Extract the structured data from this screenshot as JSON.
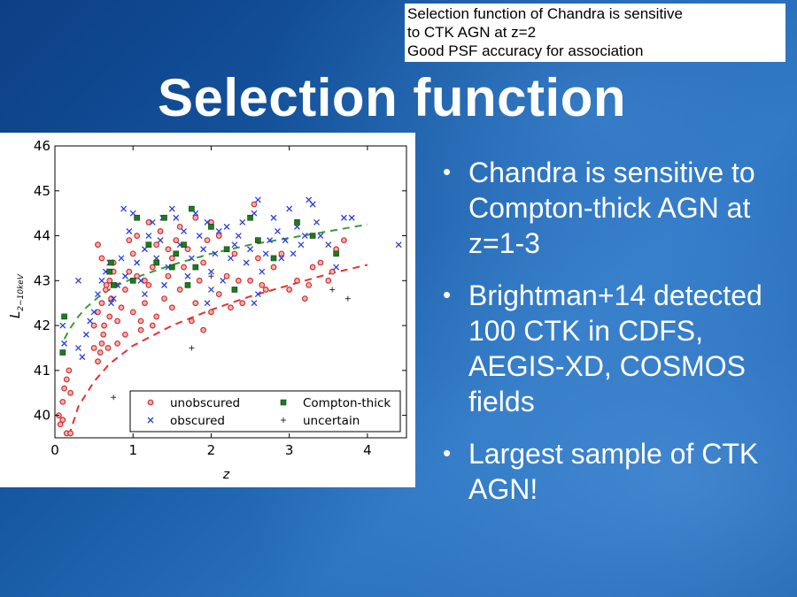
{
  "note": {
    "lines": [
      "Selection function of Chandra is sensitive",
      "to CTK AGN at z=2",
      "Good PSF accuracy for association"
    ]
  },
  "title": "Selection function",
  "bullets": [
    "Chandra is sensitive to Compton-thick AGN at z=1-3",
    "Brightman+14 detected 100 CTK in CDFS, AEGIS-XD, COSMOS fields",
    "Largest sample of CTK AGN!"
  ],
  "chart_data": {
    "type": "scatter",
    "xlabel": "z",
    "ylabel": "L",
    "ylabel_sub": "2−10keV",
    "xlim": [
      0,
      4.5
    ],
    "ylim": [
      39.5,
      46
    ],
    "xticks": [
      0,
      1,
      2,
      3,
      4
    ],
    "yticks": [
      40,
      41,
      42,
      43,
      44,
      45,
      46
    ],
    "legend_position": "lower-right",
    "colors": {
      "unobscured": "#d03030",
      "obscured": "#2a3de0",
      "compton_thick": "#1f7a1f",
      "uncertain": "#333333",
      "green_curve": "#3a9a3a",
      "red_curve": "#e83030"
    },
    "series": [
      {
        "name": "unobscured",
        "marker": "circle",
        "points": [
          [
            0.05,
            40.0
          ],
          [
            0.07,
            39.8
          ],
          [
            0.1,
            40.3
          ],
          [
            0.12,
            40.6
          ],
          [
            0.15,
            40.8
          ],
          [
            0.18,
            41.0
          ],
          [
            0.1,
            39.9
          ],
          [
            0.2,
            40.5
          ],
          [
            0.15,
            39.6
          ],
          [
            0.2,
            39.6
          ],
          [
            0.5,
            41.5
          ],
          [
            0.55,
            41.2
          ],
          [
            0.6,
            41.6
          ],
          [
            0.5,
            42.0
          ],
          [
            0.55,
            42.3
          ],
          [
            0.6,
            42.5
          ],
          [
            0.65,
            42.8
          ],
          [
            0.7,
            43.0
          ],
          [
            0.75,
            43.2
          ],
          [
            0.62,
            41.8
          ],
          [
            0.68,
            41.5
          ],
          [
            0.55,
            43.8
          ],
          [
            0.6,
            43.5
          ],
          [
            0.7,
            42.2
          ],
          [
            0.72,
            42.6
          ],
          [
            0.75,
            43.4
          ],
          [
            0.8,
            42.1
          ],
          [
            0.85,
            42.4
          ],
          [
            0.9,
            42.8
          ],
          [
            0.95,
            43.2
          ],
          [
            1.0,
            43.6
          ],
          [
            1.05,
            44.0
          ],
          [
            0.8,
            41.6
          ],
          [
            0.9,
            41.8
          ],
          [
            0.95,
            43.9
          ],
          [
            1.0,
            42.3
          ],
          [
            1.1,
            42.1
          ],
          [
            1.15,
            42.5
          ],
          [
            1.2,
            42.9
          ],
          [
            1.25,
            43.3
          ],
          [
            1.3,
            43.8
          ],
          [
            1.35,
            44.1
          ],
          [
            1.1,
            41.9
          ],
          [
            1.2,
            44.3
          ],
          [
            1.15,
            43.0
          ],
          [
            1.3,
            42.2
          ],
          [
            1.4,
            42.6
          ],
          [
            1.45,
            43.1
          ],
          [
            1.5,
            43.5
          ],
          [
            1.55,
            43.9
          ],
          [
            1.6,
            44.2
          ],
          [
            1.5,
            42.4
          ],
          [
            1.6,
            42.8
          ],
          [
            1.65,
            43.3
          ],
          [
            1.7,
            43.7
          ],
          [
            1.75,
            42.1
          ],
          [
            1.8,
            42.5
          ],
          [
            1.85,
            43.0
          ],
          [
            1.9,
            43.4
          ],
          [
            1.95,
            43.9
          ],
          [
            2.0,
            44.3
          ],
          [
            1.8,
            44.4
          ],
          [
            1.9,
            41.9
          ],
          [
            2.0,
            42.3
          ],
          [
            2.1,
            42.7
          ],
          [
            2.2,
            43.1
          ],
          [
            2.3,
            43.6
          ],
          [
            2.1,
            44.0
          ],
          [
            2.4,
            42.5
          ],
          [
            2.5,
            43.0
          ],
          [
            2.6,
            43.5
          ],
          [
            2.55,
            44.7
          ],
          [
            2.7,
            42.8
          ],
          [
            2.8,
            43.3
          ],
          [
            2.9,
            43.6
          ],
          [
            3.0,
            42.8
          ],
          [
            3.1,
            43.0
          ],
          [
            3.2,
            42.6
          ],
          [
            3.25,
            42.9
          ],
          [
            3.3,
            43.3
          ],
          [
            3.4,
            43.4
          ],
          [
            3.5,
            43.0
          ],
          [
            3.55,
            43.2
          ],
          [
            3.6,
            43.7
          ],
          [
            3.7,
            43.9
          ],
          [
            0.58,
            41.4
          ],
          [
            0.63,
            42.0
          ],
          [
            0.66,
            42.9
          ],
          [
            1.25,
            42.0
          ],
          [
            1.45,
            43.7
          ],
          [
            2.25,
            42.4
          ],
          [
            2.35,
            43.0
          ],
          [
            2.65,
            42.9
          ],
          [
            0.78,
            42.9
          ],
          [
            1.05,
            43.1
          ]
        ]
      },
      {
        "name": "obscured",
        "marker": "x",
        "points": [
          [
            0.1,
            42.0
          ],
          [
            0.12,
            41.6
          ],
          [
            0.3,
            43.0
          ],
          [
            0.3,
            41.5
          ],
          [
            0.35,
            41.3
          ],
          [
            0.4,
            41.8
          ],
          [
            0.45,
            42.1
          ],
          [
            0.5,
            42.3
          ],
          [
            0.55,
            42.7
          ],
          [
            0.6,
            43.0
          ],
          [
            0.65,
            43.2
          ],
          [
            0.7,
            43.4
          ],
          [
            0.75,
            42.6
          ],
          [
            0.8,
            42.9
          ],
          [
            0.85,
            43.5
          ],
          [
            0.9,
            43.1
          ],
          [
            0.95,
            44.1
          ],
          [
            1.0,
            44.5
          ],
          [
            1.05,
            43.4
          ],
          [
            1.1,
            43.0
          ],
          [
            1.15,
            43.7
          ],
          [
            1.2,
            44.0
          ],
          [
            1.25,
            44.3
          ],
          [
            1.3,
            43.5
          ],
          [
            1.35,
            43.9
          ],
          [
            1.4,
            42.9
          ],
          [
            1.45,
            43.3
          ],
          [
            1.5,
            44.6
          ],
          [
            1.55,
            44.4
          ],
          [
            1.6,
            43.8
          ],
          [
            1.65,
            44.1
          ],
          [
            1.7,
            43.1
          ],
          [
            1.75,
            43.5
          ],
          [
            1.8,
            44.5
          ],
          [
            1.85,
            44.0
          ],
          [
            1.9,
            43.7
          ],
          [
            1.95,
            44.3
          ],
          [
            2.0,
            43.2
          ],
          [
            2.05,
            43.6
          ],
          [
            2.1,
            44.1
          ],
          [
            2.15,
            43.0
          ],
          [
            2.2,
            44.2
          ],
          [
            2.25,
            43.5
          ],
          [
            2.3,
            43.8
          ],
          [
            2.35,
            44.0
          ],
          [
            2.4,
            44.3
          ],
          [
            2.45,
            43.4
          ],
          [
            2.5,
            43.7
          ],
          [
            2.55,
            44.5
          ],
          [
            2.6,
            42.7
          ],
          [
            2.65,
            43.2
          ],
          [
            2.7,
            43.6
          ],
          [
            2.75,
            43.9
          ],
          [
            2.8,
            44.4
          ],
          [
            2.85,
            44.1
          ],
          [
            2.9,
            43.5
          ],
          [
            2.95,
            43.9
          ],
          [
            3.0,
            44.6
          ],
          [
            3.05,
            43.6
          ],
          [
            3.1,
            44.2
          ],
          [
            3.15,
            43.8
          ],
          [
            3.2,
            44.0
          ],
          [
            3.25,
            44.8
          ],
          [
            3.3,
            44.7
          ],
          [
            3.35,
            44.3
          ],
          [
            3.4,
            44.0
          ],
          [
            3.5,
            43.8
          ],
          [
            3.6,
            43.3
          ],
          [
            3.7,
            44.4
          ],
          [
            3.8,
            44.4
          ],
          [
            4.4,
            43.8
          ],
          [
            2.55,
            42.5
          ],
          [
            2.0,
            42.8
          ],
          [
            0.72,
            42.5
          ],
          [
            1.15,
            42.7
          ],
          [
            1.95,
            42.5
          ],
          [
            2.6,
            44.8
          ],
          [
            0.88,
            44.6
          ],
          [
            1.38,
            44.4
          ]
        ]
      },
      {
        "name": "Compton-thick",
        "marker": "square",
        "points": [
          [
            0.12,
            42.2
          ],
          [
            0.1,
            41.4
          ],
          [
            0.7,
            43.2
          ],
          [
            0.75,
            42.9
          ],
          [
            0.72,
            43.4
          ],
          [
            1.0,
            43.0
          ],
          [
            1.05,
            44.4
          ],
          [
            1.2,
            43.8
          ],
          [
            1.3,
            43.4
          ],
          [
            1.4,
            44.4
          ],
          [
            1.55,
            43.6
          ],
          [
            1.65,
            43.8
          ],
          [
            1.75,
            44.6
          ],
          [
            1.8,
            43.3
          ],
          [
            2.0,
            44.2
          ],
          [
            2.2,
            43.7
          ],
          [
            2.3,
            42.8
          ],
          [
            2.5,
            44.4
          ],
          [
            2.6,
            43.9
          ],
          [
            2.8,
            43.5
          ],
          [
            3.1,
            44.3
          ],
          [
            3.3,
            44.0
          ],
          [
            3.6,
            43.6
          ],
          [
            1.5,
            43.3
          ],
          [
            1.7,
            42.9
          ]
        ]
      },
      {
        "name": "uncertain",
        "marker": "plus",
        "points": [
          [
            0.75,
            40.4
          ],
          [
            1.75,
            41.5
          ],
          [
            2.0,
            43.1
          ],
          [
            3.55,
            42.8
          ],
          [
            3.75,
            42.6
          ]
        ]
      }
    ],
    "curves": [
      {
        "name": "green-dashed",
        "points": [
          [
            0.12,
            41.7
          ],
          [
            0.2,
            41.95
          ],
          [
            0.3,
            42.2
          ],
          [
            0.4,
            42.4
          ],
          [
            0.6,
            42.7
          ],
          [
            0.8,
            42.9
          ],
          [
            1.0,
            43.05
          ],
          [
            1.5,
            43.35
          ],
          [
            2.0,
            43.6
          ],
          [
            2.5,
            43.8
          ],
          [
            3.0,
            43.95
          ],
          [
            3.5,
            44.1
          ],
          [
            4.0,
            44.25
          ]
        ]
      },
      {
        "name": "red-dashed",
        "points": [
          [
            0.18,
            39.55
          ],
          [
            0.3,
            40.2
          ],
          [
            0.5,
            40.75
          ],
          [
            0.7,
            41.15
          ],
          [
            1.0,
            41.55
          ],
          [
            1.5,
            42.0
          ],
          [
            2.0,
            42.35
          ],
          [
            2.5,
            42.65
          ],
          [
            3.0,
            42.9
          ],
          [
            3.5,
            43.15
          ],
          [
            4.0,
            43.35
          ]
        ]
      }
    ]
  }
}
